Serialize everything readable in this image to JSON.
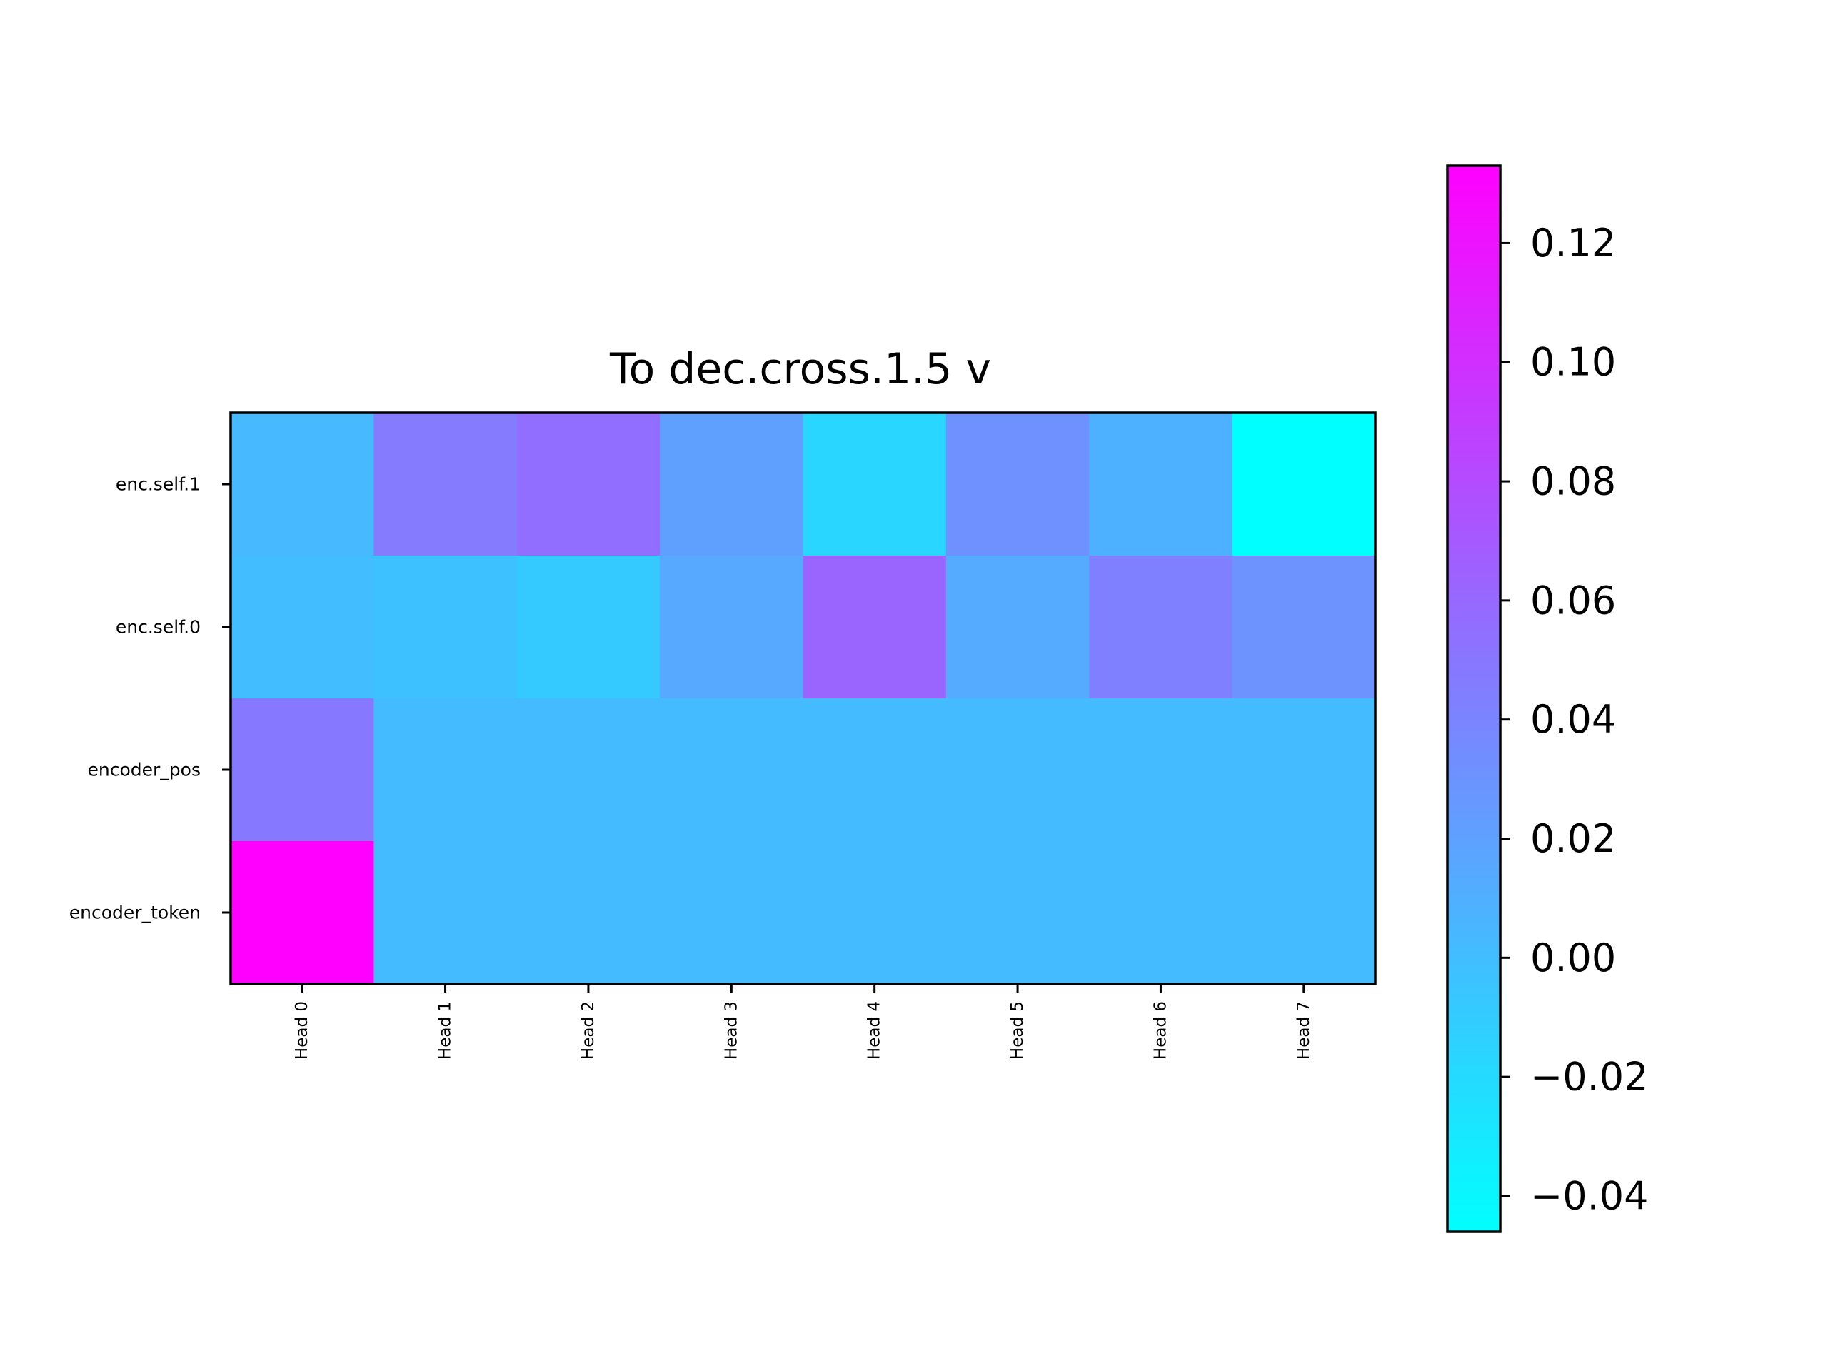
{
  "chart_data": {
    "type": "heatmap",
    "title": "To dec.cross.1.5 v",
    "xlabel": "",
    "ylabel": "",
    "x_categories": [
      "Head 0",
      "Head 1",
      "Head 2",
      "Head 3",
      "Head 4",
      "Head 5",
      "Head 6",
      "Head 7"
    ],
    "y_categories": [
      "enc.self.1",
      "enc.self.0",
      "encoder_pos",
      "encoder_token"
    ],
    "values": [
      [
        0.003,
        0.047,
        0.056,
        0.021,
        -0.017,
        0.031,
        0.009,
        -0.046
      ],
      [
        0.0,
        -0.003,
        -0.009,
        0.015,
        0.062,
        0.013,
        0.043,
        0.03
      ],
      [
        0.048,
        0.002,
        0.002,
        0.002,
        0.002,
        0.002,
        0.002,
        0.002
      ],
      [
        0.133,
        0.002,
        0.002,
        0.002,
        0.002,
        0.002,
        0.002,
        0.002
      ]
    ],
    "colormap": "cool",
    "colormap_colors": [
      "#00ffff",
      "#ff00ff"
    ],
    "value_range": [
      -0.046,
      0.133
    ],
    "colorbar": {
      "ticks": [
        -0.04,
        -0.02,
        0.0,
        0.02,
        0.04,
        0.06,
        0.08,
        0.1,
        0.12
      ],
      "tick_labels": [
        "−0.04",
        "−0.02",
        "0.00",
        "0.02",
        "0.04",
        "0.06",
        "0.08",
        "0.10",
        "0.12"
      ],
      "placement": "right"
    },
    "grid": false
  }
}
